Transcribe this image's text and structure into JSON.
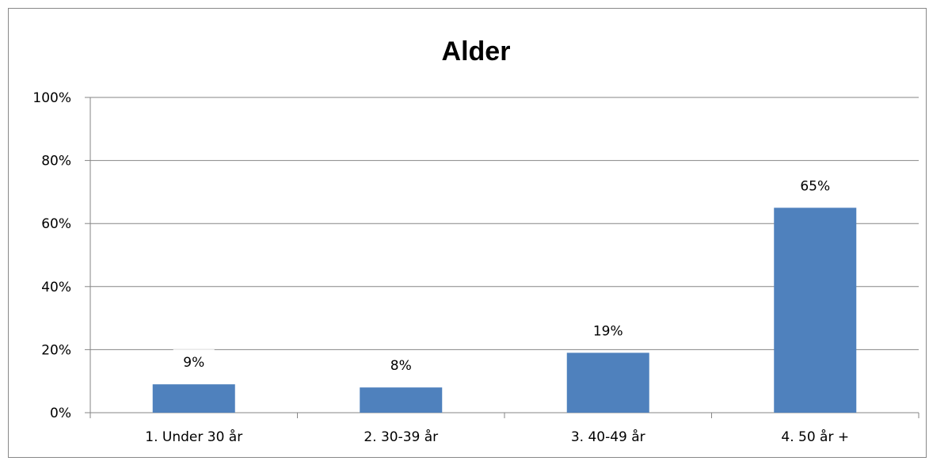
{
  "chart_data": {
    "type": "bar",
    "title": "Alder",
    "categories": [
      "1. Under 30 år",
      "2. 30-39 år",
      "3. 40-49 år",
      "4. 50 år +"
    ],
    "values": [
      9,
      8,
      19,
      65
    ],
    "data_labels": [
      "9%",
      "8%",
      "19%",
      "65%"
    ],
    "yticks": [
      "0%",
      "20%",
      "40%",
      "60%",
      "80%",
      "100%"
    ],
    "ylim": [
      0,
      100
    ],
    "xlabel": "",
    "ylabel": "",
    "grid": true,
    "legend": "none",
    "bar_color": "#4F81BD",
    "grid_color": "#868686"
  }
}
